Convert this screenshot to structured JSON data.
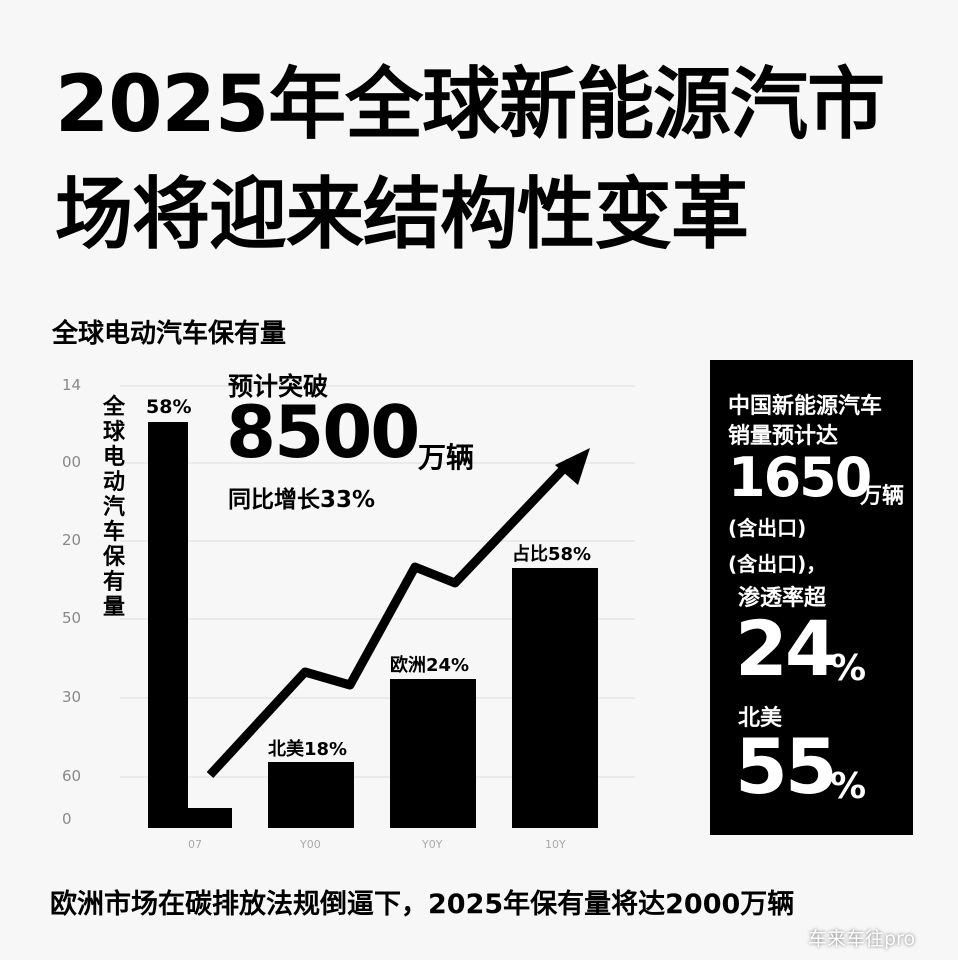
{
  "header": {
    "title_lines": [
      "2025年全球新能源汽市",
      "场将迎来结构性变革"
    ]
  },
  "chart": {
    "heading": "全球电动汽车保有量",
    "axis_labels": [
      "14",
      "00",
      "20",
      "50",
      "30",
      "60",
      "0"
    ],
    "vertical_label": "全球电动汽车保有量",
    "bar_labels": [
      "58%",
      "北美18%",
      "欧洲24%",
      "占比58%"
    ],
    "x_labels": [
      "07",
      "Y00",
      "Y0Y",
      "10Y"
    ]
  },
  "forecast": {
    "lead": "预计突破",
    "number": "8500",
    "unit": "万辆",
    "growth": "同比增长33%"
  },
  "panel": {
    "line1": "中国新能源汽车",
    "line2": "销量预计达",
    "number": "1650",
    "unit": "万辆",
    "note1": "(含出口)",
    "note2": "(含出口)，",
    "line3": "渗透率超",
    "pct1": "24",
    "pct_sign1": "%",
    "region": "北美",
    "pct2": "55",
    "pct_sign2": "%"
  },
  "footer": {
    "text": "欧洲市场在碳排放法规倒逼下，2025年保有量将达2000万辆"
  },
  "watermark": "车来车往pro"
}
